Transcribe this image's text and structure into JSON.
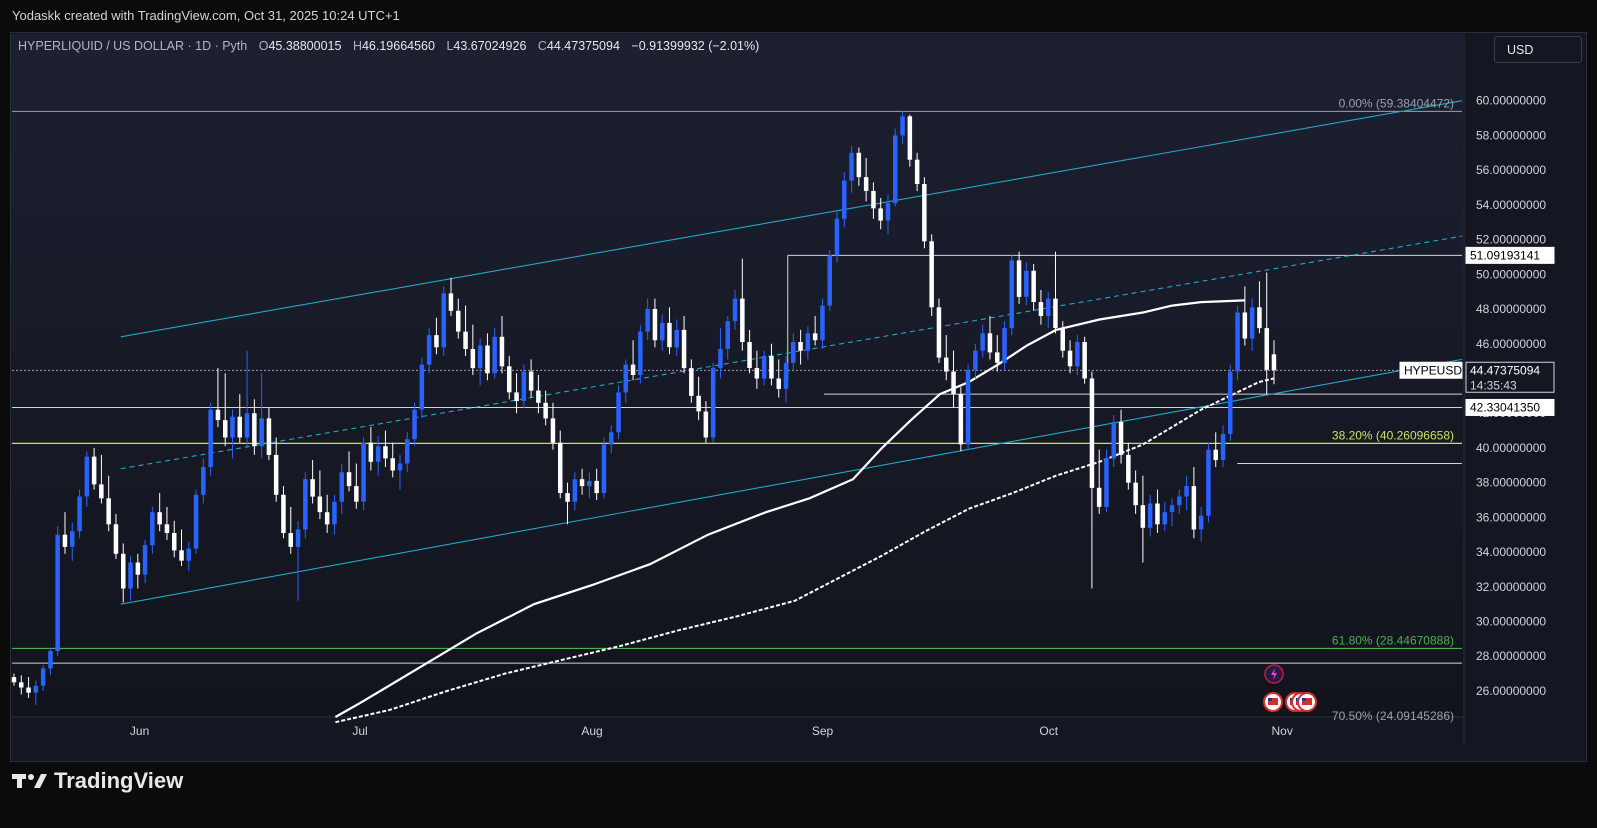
{
  "caption": "Yodaskk created with TradingView.com, Oct 31, 2025 10:24 UTC+1",
  "header": {
    "symbol": "HYPERLIQUID / US DOLLAR · 1D · Pyth",
    "o_label": "O",
    "o": "45.38800015",
    "h_label": "H",
    "h": "46.19664560",
    "l_label": "L",
    "l": "43.67024926",
    "c_label": "C",
    "c": "44.47375094",
    "change": "−0.91399932 (−2.01%)"
  },
  "currency_button": "USD",
  "brand": "TradingView",
  "colors": {
    "bull": "#2962ff",
    "bear": "#ffffff",
    "channel": "#26a6c9",
    "fib_38": "#c6e35a",
    "fib_61": "#4caf50",
    "ma": "#ffffff",
    "background": "#141722"
  },
  "chart_data": {
    "type": "candlestick",
    "y_axis": {
      "range": [
        24.5,
        62.0
      ],
      "ticks": [
        "60.00000000",
        "58.00000000",
        "56.00000000",
        "54.00000000",
        "52.00000000",
        "50.00000000",
        "48.00000000",
        "46.00000000",
        "44.00000000",
        "42.00000000",
        "40.00000000",
        "38.00000000",
        "36.00000000",
        "34.00000000",
        "32.00000000",
        "30.00000000",
        "28.00000000",
        "26.00000000"
      ]
    },
    "x_axis": {
      "labels": [
        "Jun",
        "Jul",
        "Aug",
        "Sep",
        "Oct",
        "Nov"
      ]
    },
    "price_labels": [
      {
        "text": "51.09193141",
        "value": 51.09193141
      },
      {
        "text": "HYPEUSD",
        "value": 44.47375094
      },
      {
        "text": "44.47375094",
        "value": 44.47375094
      },
      {
        "text": "14:35:43",
        "value": 43.7
      },
      {
        "text": "42.33041350",
        "value": 42.3304135
      }
    ],
    "fib_levels": [
      {
        "text": "0.00% (59.38404472)",
        "value": 59.38404472
      },
      {
        "text": "38.20% (40.26096658)",
        "value": 40.26096658
      },
      {
        "text": "61.80% (28.44670888)",
        "value": 28.44670888
      },
      {
        "text": "70.50% (24.09145286)",
        "value": 24.09145286
      }
    ],
    "horizontal_levels": [
      51.09,
      44.47,
      43.1,
      42.33,
      40.26,
      39.1,
      28.45,
      27.6
    ],
    "candles": [
      [
        26.8,
        27.0,
        26.3,
        26.5
      ],
      [
        26.5,
        26.9,
        25.8,
        26.2
      ],
      [
        26.2,
        26.8,
        25.6,
        25.9
      ],
      [
        25.9,
        26.6,
        25.2,
        26.3
      ],
      [
        26.3,
        27.5,
        26.0,
        27.3
      ],
      [
        27.3,
        28.5,
        26.9,
        28.3
      ],
      [
        28.3,
        35.5,
        28.0,
        35.0
      ],
      [
        35.0,
        36.3,
        33.9,
        34.3
      ],
      [
        34.3,
        35.7,
        33.5,
        35.2
      ],
      [
        35.2,
        37.6,
        34.8,
        37.2
      ],
      [
        37.2,
        39.8,
        36.6,
        39.5
      ],
      [
        39.5,
        40.0,
        37.6,
        37.9
      ],
      [
        37.9,
        39.6,
        36.8,
        37.1
      ],
      [
        37.1,
        38.4,
        35.2,
        35.6
      ],
      [
        35.6,
        36.2,
        33.6,
        33.9
      ],
      [
        33.9,
        34.5,
        31.1,
        31.9
      ],
      [
        31.9,
        33.8,
        31.2,
        33.4
      ],
      [
        33.4,
        33.9,
        31.9,
        32.7
      ],
      [
        32.7,
        34.7,
        32.2,
        34.4
      ],
      [
        34.4,
        36.6,
        33.9,
        36.3
      ],
      [
        36.3,
        37.4,
        35.2,
        35.6
      ],
      [
        35.6,
        36.6,
        34.7,
        35.1
      ],
      [
        35.1,
        35.8,
        33.7,
        34.1
      ],
      [
        34.1,
        35.3,
        33.2,
        33.5
      ],
      [
        33.5,
        34.6,
        32.9,
        34.2
      ],
      [
        34.2,
        37.6,
        33.9,
        37.3
      ],
      [
        37.3,
        39.4,
        36.8,
        38.9
      ],
      [
        38.9,
        42.6,
        38.4,
        42.2
      ],
      [
        42.2,
        44.6,
        41.2,
        41.6
      ],
      [
        41.6,
        44.3,
        40.1,
        40.6
      ],
      [
        40.6,
        42.2,
        39.4,
        41.8
      ],
      [
        41.8,
        43.1,
        40.3,
        40.6
      ],
      [
        40.6,
        45.6,
        40.0,
        42.0
      ],
      [
        42.0,
        42.8,
        39.6,
        40.1
      ],
      [
        40.1,
        44.3,
        39.4,
        41.7
      ],
      [
        41.7,
        42.3,
        39.3,
        39.6
      ],
      [
        39.6,
        40.6,
        36.9,
        37.3
      ],
      [
        37.3,
        37.8,
        34.8,
        35.1
      ],
      [
        35.1,
        36.6,
        33.9,
        34.3
      ],
      [
        34.3,
        35.8,
        31.2,
        35.3
      ],
      [
        35.3,
        38.6,
        34.8,
        38.2
      ],
      [
        38.2,
        39.3,
        36.8,
        37.2
      ],
      [
        37.2,
        38.7,
        35.9,
        36.3
      ],
      [
        36.3,
        37.3,
        35.1,
        35.6
      ],
      [
        35.6,
        37.3,
        35.0,
        36.9
      ],
      [
        36.9,
        39.1,
        36.2,
        38.6
      ],
      [
        38.6,
        39.8,
        37.5,
        37.8
      ],
      [
        37.8,
        39.1,
        36.5,
        36.9
      ],
      [
        36.9,
        40.6,
        36.4,
        40.3
      ],
      [
        40.3,
        41.2,
        38.7,
        39.2
      ],
      [
        39.2,
        40.7,
        38.4,
        40.1
      ],
      [
        40.1,
        41.0,
        38.9,
        39.4
      ],
      [
        39.4,
        40.3,
        38.3,
        38.7
      ],
      [
        38.7,
        39.6,
        37.6,
        39.1
      ],
      [
        39.1,
        40.9,
        38.6,
        40.5
      ],
      [
        40.5,
        42.6,
        40.1,
        42.2
      ],
      [
        42.2,
        45.2,
        41.7,
        44.8
      ],
      [
        44.8,
        46.9,
        44.3,
        46.5
      ],
      [
        46.5,
        47.5,
        45.4,
        45.8
      ],
      [
        45.8,
        49.3,
        45.3,
        48.9
      ],
      [
        48.9,
        49.8,
        47.6,
        47.9
      ],
      [
        47.9,
        48.6,
        46.3,
        46.7
      ],
      [
        46.7,
        48.2,
        45.3,
        45.7
      ],
      [
        45.7,
        47.1,
        44.2,
        44.6
      ],
      [
        44.6,
        46.3,
        43.6,
        45.9
      ],
      [
        45.9,
        46.6,
        43.9,
        44.3
      ],
      [
        44.3,
        46.9,
        44.0,
        46.4
      ],
      [
        46.4,
        47.6,
        44.3,
        44.7
      ],
      [
        44.7,
        45.3,
        42.8,
        43.2
      ],
      [
        43.2,
        44.3,
        42.0,
        42.7
      ],
      [
        42.7,
        44.8,
        42.3,
        44.4
      ],
      [
        44.4,
        45.1,
        42.9,
        43.3
      ],
      [
        43.3,
        44.2,
        42.0,
        42.6
      ],
      [
        42.6,
        43.3,
        41.3,
        41.7
      ],
      [
        41.7,
        42.6,
        39.9,
        40.3
      ],
      [
        40.3,
        41.0,
        37.1,
        37.4
      ],
      [
        37.4,
        38.0,
        35.6,
        36.9
      ],
      [
        36.9,
        38.6,
        36.4,
        38.2
      ],
      [
        38.2,
        38.8,
        37.3,
        37.8
      ],
      [
        37.8,
        38.6,
        37.1,
        38.1
      ],
      [
        38.1,
        38.8,
        37.0,
        37.4
      ],
      [
        37.4,
        40.6,
        37.1,
        40.2
      ],
      [
        40.2,
        41.3,
        39.7,
        40.9
      ],
      [
        40.9,
        43.6,
        40.5,
        43.2
      ],
      [
        43.2,
        45.1,
        42.6,
        44.8
      ],
      [
        44.8,
        46.2,
        43.9,
        44.2
      ],
      [
        44.2,
        47.1,
        43.7,
        46.7
      ],
      [
        46.7,
        48.6,
        46.2,
        48.0
      ],
      [
        48.0,
        48.6,
        45.8,
        46.2
      ],
      [
        46.2,
        47.7,
        45.6,
        47.2
      ],
      [
        47.2,
        48.1,
        45.4,
        45.8
      ],
      [
        45.8,
        47.4,
        45.3,
        46.8
      ],
      [
        46.8,
        47.6,
        44.3,
        44.6
      ],
      [
        44.6,
        45.1,
        42.6,
        43.0
      ],
      [
        43.0,
        44.1,
        41.6,
        42.1
      ],
      [
        42.1,
        42.7,
        40.3,
        40.6
      ],
      [
        40.6,
        44.9,
        40.3,
        44.6
      ],
      [
        44.6,
        46.9,
        44.0,
        45.7
      ],
      [
        45.7,
        47.6,
        45.1,
        47.3
      ],
      [
        47.3,
        49.1,
        46.8,
        48.6
      ],
      [
        48.6,
        50.9,
        45.6,
        46.1
      ],
      [
        46.1,
        46.8,
        44.3,
        44.6
      ],
      [
        44.6,
        45.6,
        43.4,
        44.0
      ],
      [
        44.0,
        45.6,
        43.6,
        45.3
      ],
      [
        45.3,
        46.0,
        43.6,
        44.0
      ],
      [
        44.0,
        45.1,
        42.9,
        43.4
      ],
      [
        43.4,
        45.3,
        42.6,
        44.9
      ],
      [
        44.9,
        46.6,
        44.4,
        46.1
      ],
      [
        46.1,
        46.8,
        44.8,
        45.6
      ],
      [
        45.6,
        47.0,
        45.1,
        46.6
      ],
      [
        46.6,
        47.6,
        45.9,
        46.2
      ],
      [
        46.2,
        48.6,
        45.7,
        48.2
      ],
      [
        48.2,
        51.4,
        47.9,
        51.1
      ],
      [
        51.1,
        53.6,
        50.7,
        53.2
      ],
      [
        53.2,
        55.9,
        52.7,
        55.4
      ],
      [
        55.4,
        57.4,
        54.7,
        57.0
      ],
      [
        57.0,
        57.3,
        55.1,
        55.6
      ],
      [
        55.6,
        56.7,
        54.2,
        54.8
      ],
      [
        54.8,
        55.3,
        53.2,
        53.8
      ],
      [
        53.8,
        54.4,
        52.6,
        53.1
      ],
      [
        53.1,
        54.6,
        52.3,
        54.1
      ],
      [
        54.1,
        58.4,
        53.9,
        58.0
      ],
      [
        58.0,
        59.4,
        57.5,
        59.1
      ],
      [
        59.1,
        59.2,
        56.2,
        56.6
      ],
      [
        56.6,
        57.0,
        54.8,
        55.2
      ],
      [
        55.2,
        55.6,
        51.5,
        51.9
      ],
      [
        51.9,
        52.3,
        47.6,
        48.1
      ],
      [
        48.1,
        48.6,
        44.9,
        45.2
      ],
      [
        45.2,
        46.5,
        43.9,
        44.4
      ],
      [
        44.4,
        45.6,
        42.3,
        43.1
      ],
      [
        43.1,
        43.5,
        39.8,
        40.2
      ],
      [
        40.2,
        44.8,
        39.9,
        44.5
      ],
      [
        44.5,
        46.0,
        44.0,
        45.6
      ],
      [
        45.6,
        47.1,
        45.2,
        46.6
      ],
      [
        46.6,
        47.6,
        45.1,
        45.5
      ],
      [
        45.5,
        46.5,
        44.4,
        44.9
      ],
      [
        44.9,
        47.3,
        44.5,
        46.9
      ],
      [
        46.9,
        51.1,
        46.5,
        50.8
      ],
      [
        50.8,
        51.3,
        48.3,
        48.7
      ],
      [
        48.7,
        50.7,
        48.2,
        50.2
      ],
      [
        50.2,
        50.6,
        47.9,
        48.4
      ],
      [
        48.4,
        49.1,
        47.1,
        47.6
      ],
      [
        47.6,
        49.0,
        46.9,
        48.6
      ],
      [
        48.6,
        51.3,
        46.6,
        46.9
      ],
      [
        46.9,
        47.3,
        45.2,
        45.6
      ],
      [
        45.6,
        46.2,
        44.3,
        44.7
      ],
      [
        44.7,
        46.5,
        44.2,
        46.1
      ],
      [
        46.1,
        46.4,
        43.7,
        44.0
      ],
      [
        44.0,
        44.4,
        31.9,
        37.7
      ],
      [
        37.7,
        39.9,
        36.2,
        36.6
      ],
      [
        36.6,
        39.9,
        36.3,
        39.4
      ],
      [
        39.4,
        41.9,
        38.9,
        41.5
      ],
      [
        41.5,
        42.2,
        39.1,
        39.6
      ],
      [
        39.6,
        40.3,
        37.6,
        38.0
      ],
      [
        38.0,
        38.7,
        36.2,
        36.7
      ],
      [
        36.7,
        38.4,
        33.4,
        35.4
      ],
      [
        35.4,
        37.3,
        34.9,
        36.8
      ],
      [
        36.8,
        37.6,
        35.1,
        35.6
      ],
      [
        35.6,
        36.9,
        35.2,
        36.3
      ],
      [
        36.3,
        37.1,
        35.5,
        36.7
      ],
      [
        36.7,
        37.6,
        36.2,
        37.2
      ],
      [
        37.2,
        38.4,
        36.4,
        37.8
      ],
      [
        37.8,
        38.9,
        34.8,
        35.3
      ],
      [
        35.3,
        36.6,
        34.6,
        36.1
      ],
      [
        36.1,
        40.3,
        35.7,
        39.9
      ],
      [
        39.9,
        40.9,
        38.9,
        39.3
      ],
      [
        39.3,
        41.3,
        38.9,
        40.8
      ],
      [
        40.8,
        44.8,
        40.4,
        44.4
      ],
      [
        44.4,
        48.2,
        43.9,
        47.8
      ],
      [
        47.8,
        49.3,
        45.9,
        46.3
      ],
      [
        46.3,
        48.6,
        45.6,
        48.1
      ],
      [
        48.1,
        49.6,
        46.6,
        46.9
      ],
      [
        46.9,
        50.1,
        43.1,
        44.5
      ],
      [
        45.39,
        46.2,
        43.67,
        44.47
      ]
    ],
    "moving_averages": [
      {
        "style": "solid",
        "points": [
          [
            0.223,
            24.5
          ],
          [
            0.24,
            25.3
          ],
          [
            0.28,
            27.3
          ],
          [
            0.32,
            29.3
          ],
          [
            0.36,
            31.0
          ],
          [
            0.4,
            32.1
          ],
          [
            0.44,
            33.3
          ],
          [
            0.48,
            35.0
          ],
          [
            0.52,
            36.3
          ],
          [
            0.55,
            37.1
          ],
          [
            0.58,
            38.2
          ],
          [
            0.6,
            40.0
          ],
          [
            0.62,
            41.6
          ],
          [
            0.64,
            43.1
          ],
          [
            0.66,
            43.8
          ],
          [
            0.68,
            44.8
          ],
          [
            0.7,
            45.9
          ],
          [
            0.72,
            46.8
          ],
          [
            0.75,
            47.4
          ],
          [
            0.78,
            47.8
          ],
          [
            0.8,
            48.2
          ],
          [
            0.82,
            48.4
          ],
          [
            0.85,
            48.5
          ]
        ]
      },
      {
        "style": "dashed",
        "points": [
          [
            0.223,
            24.2
          ],
          [
            0.26,
            24.9
          ],
          [
            0.3,
            26.0
          ],
          [
            0.34,
            27.0
          ],
          [
            0.38,
            27.8
          ],
          [
            0.42,
            28.6
          ],
          [
            0.46,
            29.5
          ],
          [
            0.5,
            30.3
          ],
          [
            0.54,
            31.2
          ],
          [
            0.57,
            32.5
          ],
          [
            0.6,
            33.8
          ],
          [
            0.63,
            35.2
          ],
          [
            0.66,
            36.5
          ],
          [
            0.69,
            37.4
          ],
          [
            0.72,
            38.4
          ],
          [
            0.75,
            39.2
          ],
          [
            0.78,
            40.2
          ],
          [
            0.8,
            41.2
          ],
          [
            0.82,
            42.2
          ],
          [
            0.84,
            43.0
          ],
          [
            0.86,
            43.8
          ],
          [
            0.87,
            44.0
          ]
        ]
      }
    ],
    "channel_lines": [
      {
        "style": "solid",
        "from": [
          0.075,
          46.4
        ],
        "to": [
          1.0,
          60.0
        ]
      },
      {
        "style": "dashed",
        "from": [
          0.075,
          38.8
        ],
        "to": [
          1.0,
          52.2
        ]
      },
      {
        "style": "solid",
        "from": [
          0.075,
          31.0
        ],
        "to": [
          1.0,
          45.1
        ]
      }
    ]
  }
}
